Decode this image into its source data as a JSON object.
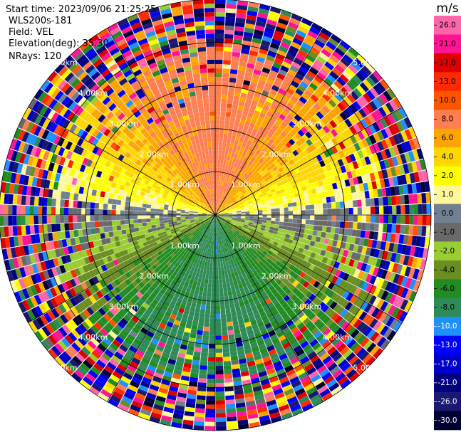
{
  "info": {
    "start_time": "Start time: 2023/09/06 21:25:25",
    "instrument": "WLS200s-181",
    "field": "Field: VEL",
    "elevation": "Elevation(deg): 35.30",
    "nrays": "NRays: 120"
  },
  "colorbar": {
    "unit": "m/s",
    "ticks": [
      "26.0",
      "21.0",
      "17.0",
      "13.0",
      "10.0",
      "8.0",
      "6.0",
      "4.0",
      "2.0",
      "1.0",
      "0.0",
      "-1.0",
      "-2.0",
      "-4.0",
      "-6.0",
      "-8.0",
      "-10.0",
      "-13.0",
      "-17.0",
      "-21.0",
      "-26.0",
      "-30.0"
    ],
    "colors": [
      "#ff66aa",
      "#ff1493",
      "#dc0000",
      "#ff2a00",
      "#ff5500",
      "#ff7f50",
      "#ffa500",
      "#ffd700",
      "#ffff00",
      "#fff799",
      "#708090",
      "#696969",
      "#9acd32",
      "#6b8e23",
      "#228b22",
      "#2e8b57",
      "#1e90ff",
      "#0000ff",
      "#0000cd",
      "#000080",
      "#191970",
      "#000033"
    ]
  },
  "chart_data": {
    "type": "heatmap",
    "projection": "polar (PPI)",
    "variable": "VEL",
    "units": "m/s",
    "vmin": -30.0,
    "vmax": 26.0,
    "nrays": 120,
    "ray_spacing_deg": 3,
    "max_range_km": 5.0,
    "range_gate_km": 0.1,
    "range_rings_km": [
      1.0,
      2.0,
      3.0,
      4.0,
      5.0
    ],
    "range_ring_labels": [
      "1.00km",
      "2.00km",
      "3.00km",
      "4.00km",
      "5.00km"
    ],
    "spoke_azimuths_deg": [
      0,
      30,
      60,
      90,
      120,
      150,
      180,
      210,
      240,
      270,
      300,
      330
    ],
    "velocity_pattern": {
      "max_receding_ms": 8.0,
      "max_receding_azimuth_deg": 0,
      "max_approaching_ms": -8.0,
      "max_approaching_azimuth_deg": 180,
      "valid_range_limit_km": 3.9,
      "noise_beyond_km": 4.0
    }
  }
}
